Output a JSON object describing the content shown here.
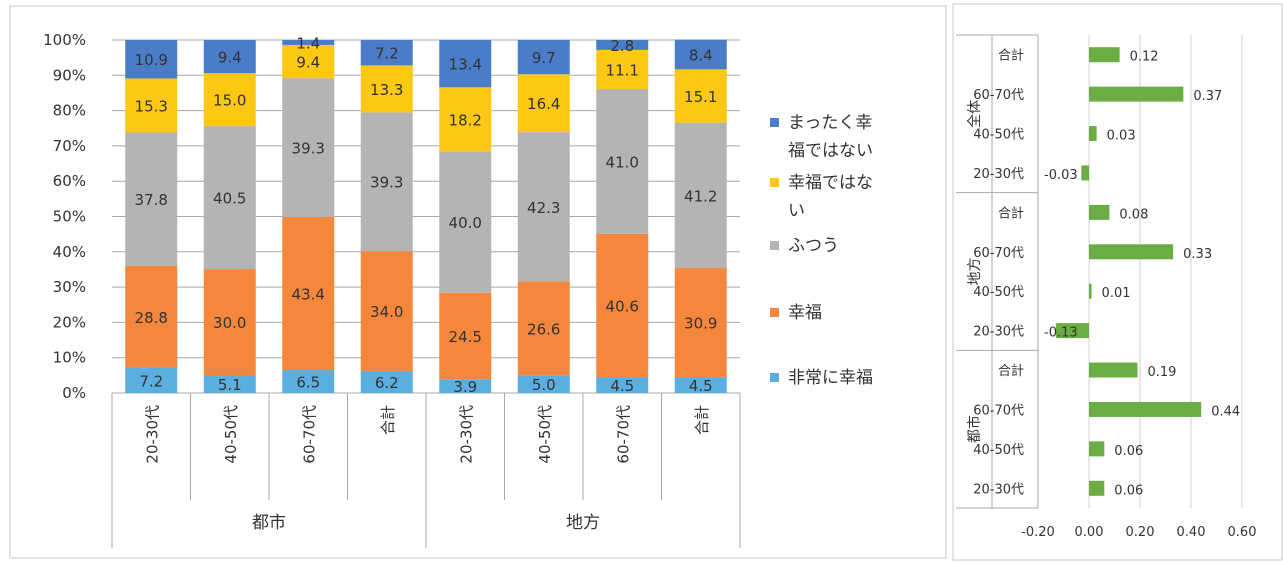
{
  "chart_data": [
    {
      "type": "bar",
      "stacked": true,
      "percent": true,
      "groups": [
        {
          "name": "都市",
          "categories": [
            "20-30代",
            "40-50代",
            "60-70代",
            "合計"
          ]
        },
        {
          "name": "地方",
          "categories": [
            "20-30代",
            "40-50代",
            "60-70代",
            "合計"
          ]
        }
      ],
      "y_ticks": [
        "0%",
        "10%",
        "20%",
        "30%",
        "40%",
        "50%",
        "60%",
        "70%",
        "80%",
        "90%",
        "100%"
      ],
      "ylim": [
        0,
        100
      ],
      "series": [
        {
          "name": "非常に幸福",
          "color": "#5aaee0",
          "values": [
            7.2,
            5.1,
            6.5,
            6.2,
            3.9,
            5.0,
            4.5,
            4.5
          ],
          "labels": [
            "7.2",
            "5.1",
            "6.5",
            "6.2",
            "3.9",
            "5.0",
            "4.5",
            "4.5"
          ]
        },
        {
          "name": "幸福",
          "color": "#f5873c",
          "values": [
            28.8,
            30.0,
            43.4,
            34.0,
            24.5,
            26.6,
            40.6,
            30.9
          ],
          "labels": [
            "28.8",
            "30.0",
            "43.4",
            "34.0",
            "24.5",
            "26.6",
            "40.6",
            "30.9"
          ]
        },
        {
          "name": "ふつう",
          "color": "#b4b4b4",
          "values": [
            37.8,
            40.5,
            39.3,
            39.3,
            40.0,
            42.3,
            41.0,
            41.2
          ],
          "labels": [
            "37.8",
            "40.5",
            "39.3",
            "39.3",
            "40.0",
            "42.3",
            "41.0",
            "41.2"
          ]
        },
        {
          "name": "幸福ではない",
          "color": "#fcc814",
          "values": [
            15.3,
            15.0,
            9.4,
            13.3,
            18.2,
            16.4,
            11.1,
            15.1
          ],
          "labels": [
            "15.3",
            "15.0",
            "9.4",
            "13.3",
            "18.2",
            "16.4",
            "11.1",
            "15.1"
          ]
        },
        {
          "name": "まったく幸福ではない",
          "color": "#4a7cc8",
          "values": [
            10.9,
            9.4,
            1.4,
            7.2,
            13.4,
            9.7,
            2.8,
            8.4
          ],
          "labels": [
            "10.9",
            "9.4",
            "1.4",
            "7.2",
            "13.4",
            "9.7",
            "2.8",
            "8.4"
          ]
        }
      ],
      "legend": {
        "placement": "right",
        "entries": [
          {
            "lines": [
              "まったく幸",
              "福ではない"
            ],
            "color": "#4a7cc8"
          },
          {
            "lines": [
              "幸福ではな",
              "い"
            ],
            "color": "#fcc814"
          },
          {
            "lines": [
              "ふつう"
            ],
            "color": "#b4b4b4"
          },
          {
            "lines": [
              "幸福"
            ],
            "color": "#f5873c"
          },
          {
            "lines": [
              "非常に幸福"
            ],
            "color": "#5aaee0"
          }
        ]
      },
      "grid": true
    },
    {
      "type": "bar",
      "orientation": "horizontal",
      "bar_color": "#6aad42",
      "xlim": [
        -0.2,
        0.6
      ],
      "x_ticks": [
        "-0.20",
        "0.00",
        "0.20",
        "0.40",
        "0.60"
      ],
      "groups": [
        {
          "name": "全体",
          "rows": [
            {
              "category": "合計",
              "value": 0.12,
              "label": "0.12"
            },
            {
              "category": "60-70代",
              "value": 0.37,
              "label": "0.37"
            },
            {
              "category": "40-50代",
              "value": 0.03,
              "label": "0.03"
            },
            {
              "category": "20-30代",
              "value": -0.03,
              "label": "-0.03"
            }
          ]
        },
        {
          "name": "地方",
          "rows": [
            {
              "category": "合計",
              "value": 0.08,
              "label": "0.08"
            },
            {
              "category": "60-70代",
              "value": 0.33,
              "label": "0.33"
            },
            {
              "category": "40-50代",
              "value": 0.01,
              "label": "0.01"
            },
            {
              "category": "20-30代",
              "value": -0.13,
              "label": "-0.13"
            }
          ]
        },
        {
          "name": "都市",
          "rows": [
            {
              "category": "合計",
              "value": 0.19,
              "label": "0.19"
            },
            {
              "category": "60-70代",
              "value": 0.44,
              "label": "0.44"
            },
            {
              "category": "40-50代",
              "value": 0.06,
              "label": "0.06"
            },
            {
              "category": "20-30代",
              "value": 0.06,
              "label": "0.06"
            }
          ]
        }
      ],
      "grid": true
    }
  ]
}
